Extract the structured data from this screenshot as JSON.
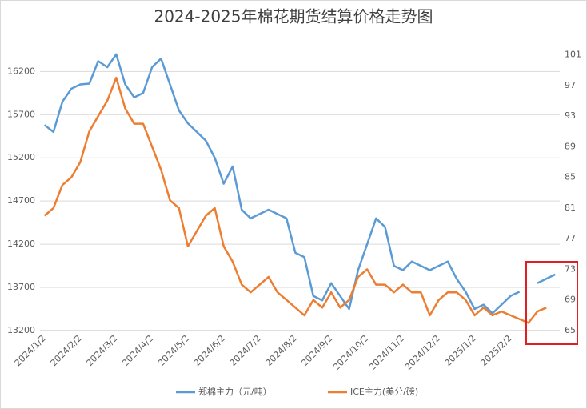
{
  "chart_data": {
    "type": "line",
    "title": "2024-2025年棉花期货结算价格走势图",
    "categories": [
      "2024/1/2",
      null,
      null,
      null,
      "2024/2/2",
      null,
      null,
      null,
      "2024/3/2",
      null,
      null,
      null,
      "2024/4/2",
      null,
      null,
      null,
      "2024/5/2",
      null,
      null,
      null,
      "2024/6/2",
      null,
      null,
      null,
      "2024/7/2",
      null,
      null,
      null,
      "2024/8/2",
      null,
      null,
      null,
      "2024/9/2",
      null,
      null,
      null,
      "2024/10/2",
      null,
      null,
      null,
      "2024/11/2",
      null,
      null,
      null,
      "2024/12/2",
      null,
      null,
      null,
      "2025/1/2",
      null,
      null,
      null,
      "2025/2/2",
      null,
      null,
      null,
      null,
      null
    ],
    "series": [
      {
        "name": "郑棉主力（元/吨）",
        "color": "#5b9bd5",
        "axis": "y",
        "values": [
          15580,
          15500,
          15850,
          16000,
          16050,
          16060,
          16320,
          16250,
          16400,
          16050,
          15900,
          15950,
          16250,
          16350,
          16050,
          15750,
          15600,
          15500,
          15400,
          15200,
          14900,
          15100,
          14600,
          14500,
          14550,
          14600,
          14550,
          14500,
          14100,
          14050,
          13600,
          13550,
          13750,
          13600,
          13450,
          13900,
          14200,
          14500,
          14400,
          13950,
          13900,
          14000,
          13950,
          13900,
          13950,
          14000,
          13800,
          13650,
          13450,
          13500,
          13400,
          13500,
          13600,
          13650,
          null,
          13750,
          13800,
          13850
        ]
      },
      {
        "name": "ICE主力(美分/磅)",
        "color": "#ed7d31",
        "axis": "y2",
        "values": [
          80,
          81,
          84,
          85,
          87,
          91,
          93,
          95,
          98,
          94,
          92,
          92,
          89,
          86,
          82,
          81,
          76,
          78,
          80,
          81,
          76,
          74,
          71,
          70,
          71,
          72,
          70,
          69,
          68,
          67,
          69,
          68,
          70,
          68,
          69,
          72,
          73,
          71,
          71,
          70,
          71,
          70,
          70,
          67,
          69,
          70,
          70,
          69,
          67,
          68,
          67,
          67.5,
          67,
          66.5,
          66,
          67.5,
          68,
          null
        ]
      }
    ],
    "ylim": [
      13200,
      16500
    ],
    "yticks": [
      13200,
      13700,
      14200,
      14700,
      15200,
      15700,
      16200
    ],
    "y2lim": [
      65,
      102.2
    ],
    "y2ticks": [
      65,
      69,
      73,
      77,
      81,
      85,
      89,
      93,
      97,
      101
    ],
    "grid": true,
    "legend": "bottom"
  }
}
